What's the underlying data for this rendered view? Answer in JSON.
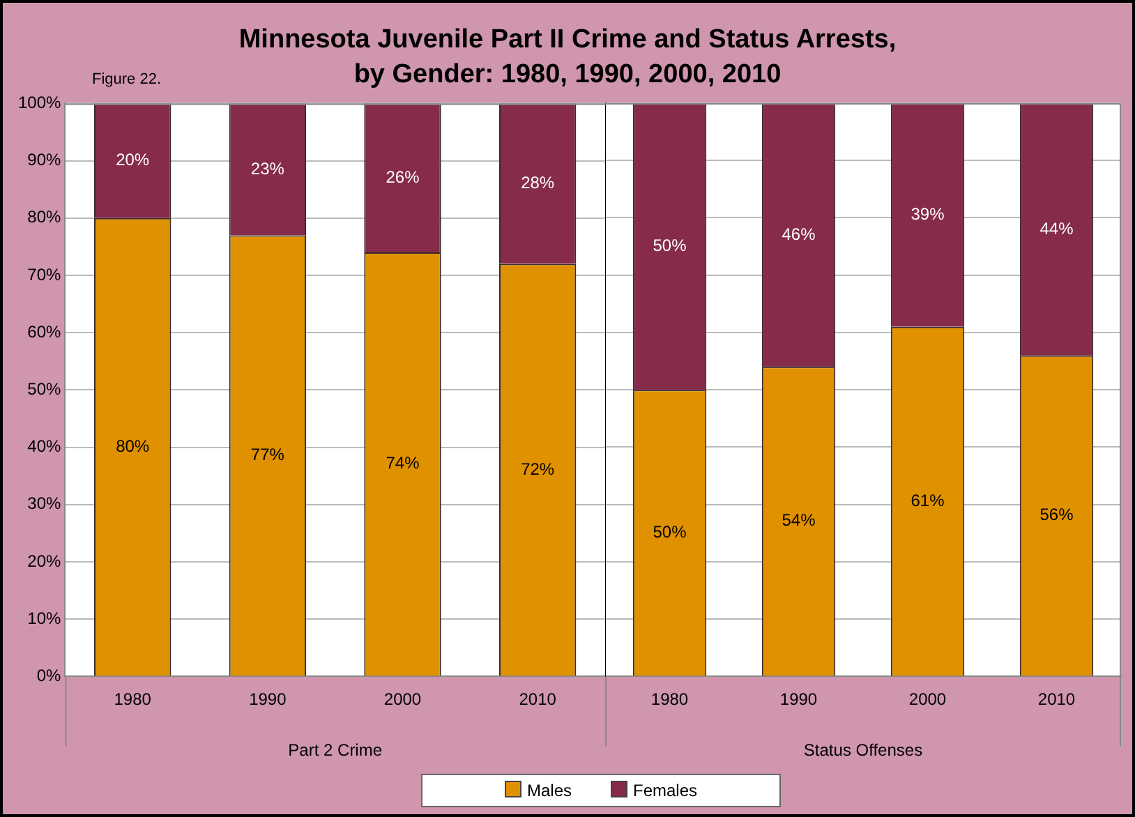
{
  "chart_data": [
    {
      "type": "bar",
      "title": "Minnesota Juvenile Part II Crime and Status Arrests, by Gender: 1980, 1990, 2000, 2010",
      "xlabel": "Part 2 Crime",
      "categories": [
        "1980",
        "1990",
        "2000",
        "2010"
      ],
      "stacked": true,
      "series": [
        {
          "name": "Males",
          "color": "#e09100",
          "values": [
            80,
            77,
            74,
            72
          ],
          "value_labels": [
            "80%",
            "77%",
            "74%",
            "72%"
          ]
        },
        {
          "name": "Females",
          "color": "#862b4a",
          "values": [
            20,
            23,
            26,
            28
          ],
          "value_labels": [
            "20%",
            "23%",
            "26%",
            "28%"
          ]
        }
      ],
      "ylim": [
        0,
        100
      ],
      "yticks": [
        {
          "value": 0,
          "label": "0%"
        },
        {
          "value": 10,
          "label": "10%"
        },
        {
          "value": 20,
          "label": "20%"
        },
        {
          "value": 30,
          "label": "30%"
        },
        {
          "value": 40,
          "label": "40%"
        },
        {
          "value": 50,
          "label": "50%"
        },
        {
          "value": 60,
          "label": "60%"
        },
        {
          "value": 70,
          "label": "70%"
        },
        {
          "value": 80,
          "label": "80%"
        },
        {
          "value": 90,
          "label": "90%"
        },
        {
          "value": 100,
          "label": "100%"
        }
      ],
      "grid": "y",
      "legend": "bottom",
      "annotations": [
        "Figure 22."
      ]
    },
    {
      "type": "bar",
      "xlabel": "Status Offenses",
      "categories": [
        "1980",
        "1990",
        "2000",
        "2010"
      ],
      "stacked": true,
      "series": [
        {
          "color": "#e09100",
          "values": [
            50,
            54,
            61,
            56
          ],
          "value_labels": [
            "50%",
            "54%",
            "61%",
            "56%"
          ]
        },
        {
          "color": "#862b4a",
          "values": [
            50,
            46,
            39,
            44
          ],
          "value_labels": [
            "50%",
            "46%",
            "39%",
            "44%"
          ]
        }
      ],
      "ylim": [
        0,
        100
      ],
      "yticks": [
        0,
        10,
        20,
        30,
        40,
        50,
        60,
        70,
        80,
        90,
        100
      ],
      "grid": "y",
      "tick_labels": "x"
    }
  ]
}
